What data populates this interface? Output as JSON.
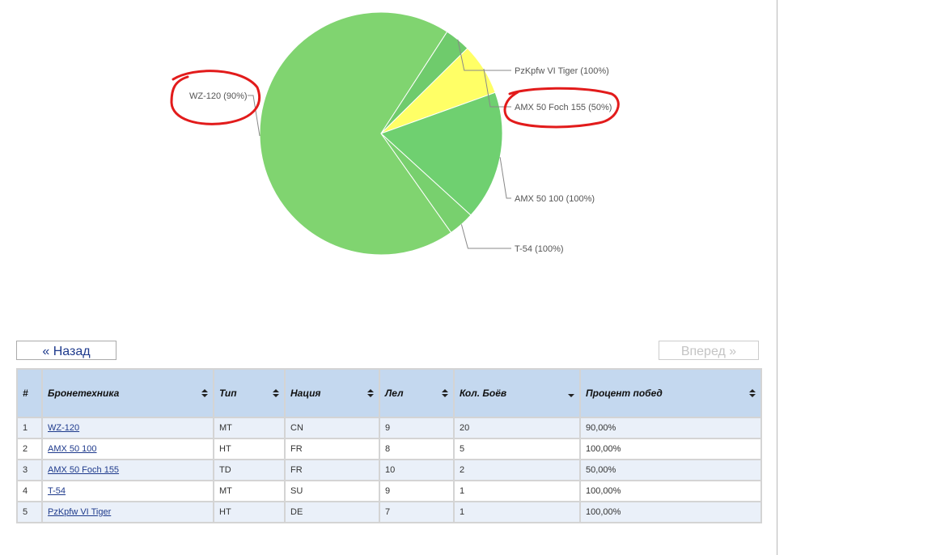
{
  "chart_data": {
    "type": "pie",
    "slices": [
      {
        "label": "WZ-120 (90%)",
        "value": 20,
        "color": "#80d470"
      },
      {
        "label": "PzKpfw VI Tiger (100%)",
        "value": 1,
        "color": "#6fcb6c"
      },
      {
        "label": "AMX 50 Foch 155 (50%)",
        "value": 2,
        "color": "#ffff66"
      },
      {
        "label": "AMX 50 100 (100%)",
        "value": 5,
        "color": "#6fd070"
      },
      {
        "label": "T-54 (100%)",
        "value": 1,
        "color": "#78d06e"
      }
    ]
  },
  "nav": {
    "back_label": "« Назад",
    "forward_label": "Вперед »"
  },
  "table": {
    "headers": [
      "#",
      "Бронетехника",
      "Тип",
      "Нация",
      "Лел",
      "Кол. Боёв",
      "Процент побед"
    ],
    "rows": [
      [
        "1",
        "WZ-120",
        "MT",
        "CN",
        "9",
        "20",
        "90,00%"
      ],
      [
        "2",
        "AMX 50 100",
        "HT",
        "FR",
        "8",
        "5",
        "100,00%"
      ],
      [
        "3",
        "AMX 50 Foch 155",
        "TD",
        "FR",
        "10",
        "2",
        "50,00%"
      ],
      [
        "4",
        "T-54",
        "MT",
        "SU",
        "9",
        "1",
        "100,00%"
      ],
      [
        "5",
        "PzKpfw VI Tiger",
        "HT",
        "DE",
        "7",
        "1",
        "100,00%"
      ]
    ]
  }
}
